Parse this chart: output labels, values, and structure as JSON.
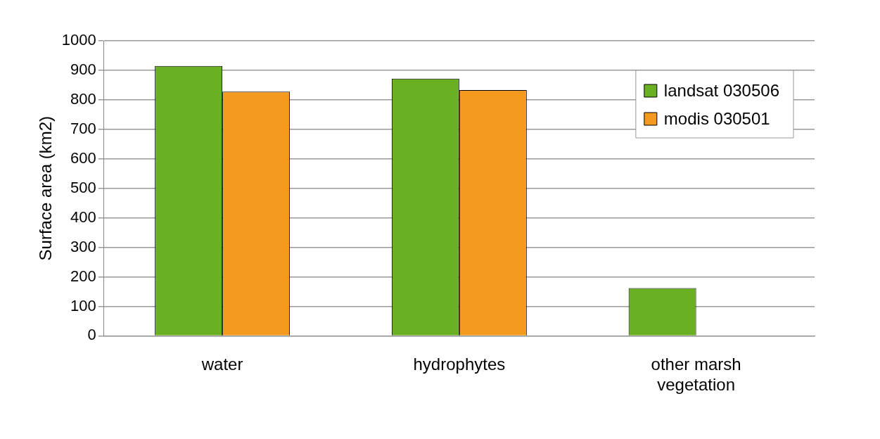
{
  "chart_data": {
    "type": "bar",
    "ylabel": "Surface area (km2)",
    "categories": [
      "water",
      "hydrophytes",
      "other marsh vegetation"
    ],
    "series": [
      {
        "name": "landsat 030506",
        "color": "#6ab023",
        "values": [
          915,
          872,
          162
        ]
      },
      {
        "name": "modis 030501",
        "color": "#f39a1f",
        "values": [
          828,
          833,
          null
        ]
      }
    ],
    "ylim": [
      0,
      1000
    ],
    "yticks": [
      0,
      100,
      200,
      300,
      400,
      500,
      600,
      700,
      800,
      900,
      1000
    ],
    "grid": "y",
    "legend": "top right"
  }
}
